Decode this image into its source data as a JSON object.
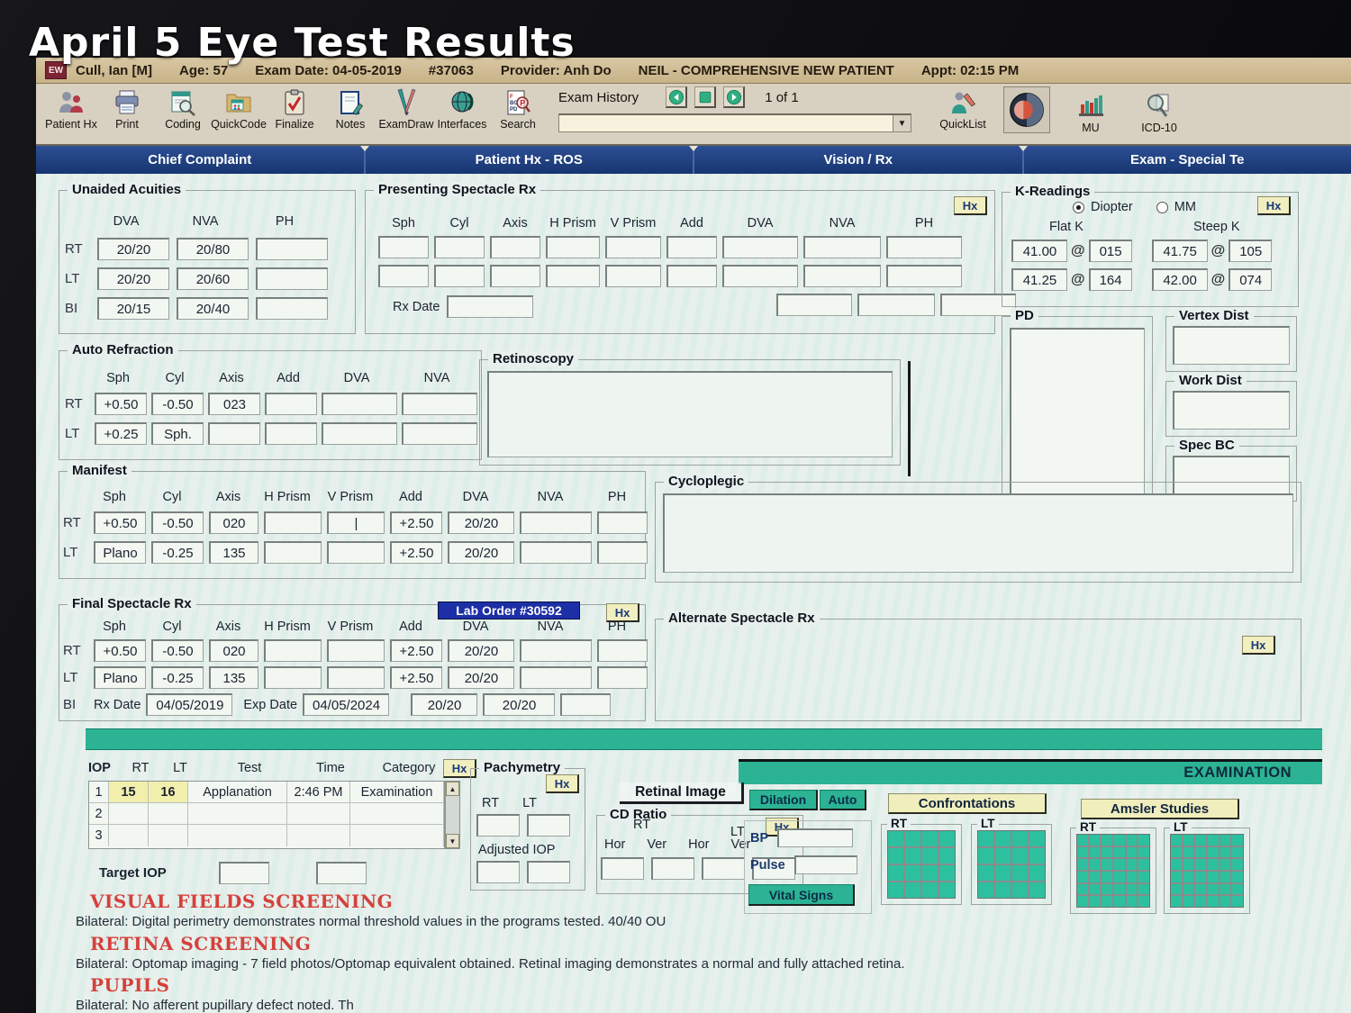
{
  "overlay_title": "April 5 Eye Test Results",
  "titlebar": {
    "app_icon_text": "EW",
    "patient_name": "Cull,  Ian   [M]",
    "age": "Age: 57",
    "exam_date": "Exam Date: 04-05-2019",
    "exam_number": "#37063",
    "provider": "Provider: Anh Do",
    "visit_type": "NEIL - COMPREHENSIVE NEW PATIENT",
    "appt": "Appt: 02:15 PM"
  },
  "toolbar": {
    "buttons": [
      {
        "label": "Patient Hx"
      },
      {
        "label": "Print"
      },
      {
        "label": "Coding"
      },
      {
        "label": "QuickCode"
      },
      {
        "label": "Finalize"
      },
      {
        "label": "Notes"
      },
      {
        "label": "ExamDraw"
      },
      {
        "label": "Interfaces"
      },
      {
        "label": "Search"
      }
    ],
    "exam_history_label": "Exam History",
    "page_indicator": "1 of 1",
    "combo_value": "",
    "quicklist_label": "QuickList",
    "mu_label": "MU",
    "icd10_label": "ICD-10"
  },
  "tabs": [
    {
      "label": "Chief Complaint"
    },
    {
      "label": "Patient Hx - ROS"
    },
    {
      "label": "Vision / Rx"
    },
    {
      "label": "Exam - Special Te"
    }
  ],
  "unaided": {
    "title": "Unaided Acuities",
    "col_headers": [
      "DVA",
      "NVA",
      "PH"
    ],
    "rows": [
      {
        "label": "RT",
        "dva": "20/20",
        "nva": "20/80",
        "ph": ""
      },
      {
        "label": "LT",
        "dva": "20/20",
        "nva": "20/60",
        "ph": ""
      },
      {
        "label": "BI",
        "dva": "20/15",
        "nva": "20/40",
        "ph": ""
      }
    ]
  },
  "presenting": {
    "title": "Presenting Spectacle Rx",
    "hx": "Hx",
    "col_headers": [
      "Sph",
      "Cyl",
      "Axis",
      "H Prism",
      "V Prism",
      "Add",
      "DVA",
      "NVA",
      "PH"
    ],
    "rx_date_label": "Rx Date"
  },
  "k_readings": {
    "title": "K-Readings",
    "hx": "Hx",
    "diopter": "Diopter",
    "mm": "MM",
    "flat_label": "Flat K",
    "steep_label": "Steep K",
    "at": "@",
    "flat": [
      {
        "k": "41.00",
        "axis": "015"
      },
      {
        "k": "41.25",
        "axis": "164"
      }
    ],
    "steep": [
      {
        "k": "41.75",
        "axis": "105"
      },
      {
        "k": "42.00",
        "axis": "074"
      }
    ]
  },
  "pd_title": "PD",
  "vertex_title": "Vertex Dist",
  "work_title": "Work Dist",
  "specbc_title": "Spec BC",
  "auto_refraction": {
    "title": "Auto Refraction",
    "col_headers": [
      "Sph",
      "Cyl",
      "Axis",
      "Add",
      "DVA",
      "NVA"
    ],
    "rows": [
      {
        "label": "RT",
        "sph": "+0.50",
        "cyl": "-0.50",
        "axis": "023"
      },
      {
        "label": "LT",
        "sph": "+0.25",
        "cyl": "Sph.",
        "axis": ""
      }
    ]
  },
  "retinoscopy_title": "Retinoscopy",
  "manifest": {
    "title": "Manifest",
    "col_headers": [
      "Sph",
      "Cyl",
      "Axis",
      "H Prism",
      "V Prism",
      "Add",
      "DVA",
      "NVA",
      "PH"
    ],
    "rows": [
      {
        "label": "RT",
        "sph": "+0.50",
        "cyl": "-0.50",
        "axis": "020",
        "add": "+2.50",
        "dva": "20/20"
      },
      {
        "label": "LT",
        "sph": "Plano",
        "cyl": "-0.25",
        "axis": "135",
        "add": "+2.50",
        "dva": "20/20"
      }
    ]
  },
  "cycloplegic_title": "Cycloplegic",
  "final_rx": {
    "title": "Final Spectacle Rx",
    "lab_order": "Lab Order #30592",
    "hx": "Hx",
    "col_headers": [
      "Sph",
      "Cyl",
      "Axis",
      "H Prism",
      "V Prism",
      "Add",
      "DVA",
      "NVA",
      "PH"
    ],
    "rows": [
      {
        "label": "RT",
        "sph": "+0.50",
        "cyl": "-0.50",
        "axis": "020",
        "add": "+2.50",
        "dva": "20/20"
      },
      {
        "label": "LT",
        "sph": "Plano",
        "cyl": "-0.25",
        "axis": "135",
        "add": "+2.50",
        "dva": "20/20"
      }
    ],
    "bi_label": "BI",
    "rx_date_label": "Rx Date",
    "rx_date": "04/05/2019",
    "exp_date_label": "Exp Date",
    "exp_date": "04/05/2024",
    "bi_dva": "20/20",
    "bi_nva": "20/20"
  },
  "alternate": {
    "title": "Alternate Spectacle Rx",
    "hx": "Hx"
  },
  "examination": {
    "banner": "EXAMINATION",
    "iop": {
      "label": "IOP",
      "headers": [
        "RT",
        "LT",
        "Test",
        "Time",
        "Category"
      ],
      "hx": "Hx",
      "row1": {
        "num": "1",
        "rt": "15",
        "lt": "16",
        "test": "Applanation",
        "time": "2:46 PM",
        "category": "Examination"
      },
      "row2_num": "2",
      "row3_num": "3",
      "target_label": "Target IOP"
    },
    "pachymetry": {
      "title": "Pachymetry",
      "hx": "Hx",
      "rt": "RT",
      "lt": "LT",
      "adjusted": "Adjusted IOP"
    },
    "retinal_image": "Retinal Image",
    "cd_ratio": {
      "title": "CD Ratio",
      "hx": "Hx",
      "rt": "RT",
      "lt": "LT",
      "hor": "Hor",
      "ver": "Ver"
    },
    "dilation": "Dilation",
    "auto": "Auto",
    "bp": "BP",
    "pulse": "Pulse",
    "vital_signs": "Vital Signs",
    "confrontations": "Confrontations",
    "amsler": "Amsler Studies",
    "rt_label": "RT",
    "lt_label": "LT"
  },
  "notes": [
    {
      "heading": "VISUAL FIELDS SCREENING",
      "body": "Bilateral: Digital perimetry demonstrates normal threshold values in the programs tested. 40/40 OU"
    },
    {
      "heading": "RETINA SCREENING",
      "body": "Bilateral:  Optomap imaging - 7 field photos/Optomap equivalent obtained.   Retinal imaging demonstrates a normal and fully attached retina."
    },
    {
      "heading": "PUPILS",
      "body": "Bilateral: No afferent pupillary defect noted. Th"
    }
  ],
  "colors": {
    "teal": "#2bb394",
    "tab_navy": "#1c3c7c",
    "heading_red": "#d5413c",
    "lab_order_bg": "#1d2fa6",
    "hx_bg": "#f1efc0",
    "highlight_yellow": "#f2efad"
  }
}
